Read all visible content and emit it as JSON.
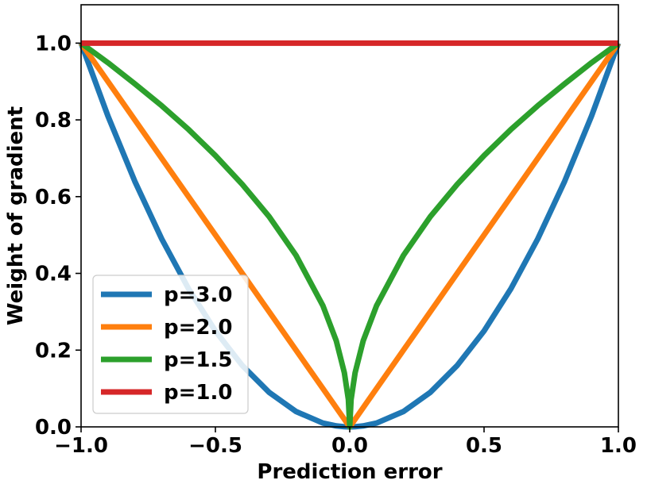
{
  "chart_data": {
    "type": "line",
    "title": "",
    "xlabel": "Prediction error",
    "ylabel": "Weight of gradient",
    "xlim": [
      -1.0,
      1.0
    ],
    "ylim": [
      0.0,
      1.1
    ],
    "xticks": [
      -1.0,
      -0.5,
      0.0,
      0.5,
      1.0
    ],
    "xtick_labels": [
      "−1.0",
      "−0.5",
      "0.0",
      "0.5",
      "1.0"
    ],
    "yticks": [
      0.0,
      0.2,
      0.4,
      0.6,
      0.8,
      1.0
    ],
    "ytick_labels": [
      "0.0",
      "0.2",
      "0.4",
      "0.6",
      "0.8",
      "1.0"
    ],
    "grid": false,
    "legend_position": "lower-left",
    "x": [
      -1.0,
      -0.9,
      -0.8,
      -0.7,
      -0.6,
      -0.5,
      -0.4,
      -0.3,
      -0.2,
      -0.1,
      -0.05,
      -0.02,
      -0.005,
      0.0,
      0.005,
      0.02,
      0.05,
      0.1,
      0.2,
      0.3,
      0.4,
      0.5,
      0.6,
      0.7,
      0.8,
      0.9,
      1.0
    ],
    "series": [
      {
        "name": "p=3.0",
        "color": "#1f77b4",
        "values": [
          1.0,
          0.81,
          0.64,
          0.49,
          0.36,
          0.25,
          0.16,
          0.09,
          0.04,
          0.01,
          0.0025,
          0.0004,
          0.0,
          0.0,
          0.0,
          0.0004,
          0.0025,
          0.01,
          0.04,
          0.09,
          0.16,
          0.25,
          0.36,
          0.49,
          0.64,
          0.81,
          1.0
        ]
      },
      {
        "name": "p=2.0",
        "color": "#ff7f0e",
        "values": [
          1.0,
          0.9,
          0.8,
          0.7,
          0.6,
          0.5,
          0.4,
          0.3,
          0.2,
          0.1,
          0.05,
          0.02,
          0.005,
          0.0,
          0.005,
          0.02,
          0.05,
          0.1,
          0.2,
          0.3,
          0.4,
          0.5,
          0.6,
          0.7,
          0.8,
          0.9,
          1.0
        ]
      },
      {
        "name": "p=1.5",
        "color": "#2ca02c",
        "values": [
          1.0,
          0.949,
          0.894,
          0.837,
          0.775,
          0.707,
          0.632,
          0.548,
          0.447,
          0.316,
          0.224,
          0.141,
          0.071,
          0.0,
          0.071,
          0.141,
          0.224,
          0.316,
          0.447,
          0.548,
          0.632,
          0.707,
          0.775,
          0.837,
          0.894,
          0.949,
          1.0
        ]
      },
      {
        "name": "p=1.0",
        "color": "#d62728",
        "values": [
          1.0,
          1.0,
          1.0,
          1.0,
          1.0,
          1.0,
          1.0,
          1.0,
          1.0,
          1.0,
          1.0,
          1.0,
          1.0,
          1.0,
          1.0,
          1.0,
          1.0,
          1.0,
          1.0,
          1.0,
          1.0,
          1.0,
          1.0,
          1.0,
          1.0,
          1.0,
          1.0
        ]
      }
    ]
  }
}
